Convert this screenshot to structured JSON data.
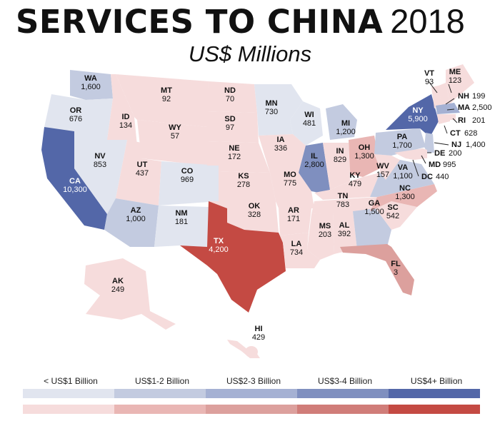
{
  "title": {
    "main": "SERVICES TO CHINA",
    "year": "2018",
    "subtitle": "US$ Millions"
  },
  "colors": {
    "blue": [
      "#e1e5ef",
      "#c3cbe0",
      "#a5b1d3",
      "#7f8fbf",
      "#5367a8"
    ],
    "red": [
      "#f6dcdc",
      "#e9b6b4",
      "#dca09d",
      "#d07d79",
      "#c44a43"
    ]
  },
  "legend": [
    {
      "label": "< US$1 Billion"
    },
    {
      "label": "US$1-2 Billion"
    },
    {
      "label": "US$2-3 Billion"
    },
    {
      "label": "US$3-4 Billion"
    },
    {
      "label": "US$4+ Billion"
    }
  ],
  "states": [
    {
      "code": "WA",
      "value": "1,600"
    },
    {
      "code": "OR",
      "value": "676"
    },
    {
      "code": "CA",
      "value": "10,300"
    },
    {
      "code": "NV",
      "value": "853"
    },
    {
      "code": "ID",
      "value": "134"
    },
    {
      "code": "MT",
      "value": "92"
    },
    {
      "code": "WY",
      "value": "57"
    },
    {
      "code": "UT",
      "value": "437"
    },
    {
      "code": "AZ",
      "value": "1,000"
    },
    {
      "code": "CO",
      "value": "969"
    },
    {
      "code": "NM",
      "value": "181"
    },
    {
      "code": "ND",
      "value": "70"
    },
    {
      "code": "SD",
      "value": "97"
    },
    {
      "code": "NE",
      "value": "172"
    },
    {
      "code": "KS",
      "value": "278"
    },
    {
      "code": "OK",
      "value": "328"
    },
    {
      "code": "TX",
      "value": "4,200"
    },
    {
      "code": "MN",
      "value": "730"
    },
    {
      "code": "IA",
      "value": "336"
    },
    {
      "code": "MO",
      "value": "775"
    },
    {
      "code": "AR",
      "value": "171"
    },
    {
      "code": "LA",
      "value": "734"
    },
    {
      "code": "WI",
      "value": "481"
    },
    {
      "code": "IL",
      "value": "2,800"
    },
    {
      "code": "MI",
      "value": "1,200"
    },
    {
      "code": "IN",
      "value": "829"
    },
    {
      "code": "OH",
      "value": "1,300"
    },
    {
      "code": "KY",
      "value": "479"
    },
    {
      "code": "TN",
      "value": "783"
    },
    {
      "code": "MS",
      "value": "203"
    },
    {
      "code": "AL",
      "value": "392"
    },
    {
      "code": "GA",
      "value": "1,500"
    },
    {
      "code": "FL",
      "value": "3"
    },
    {
      "code": "SC",
      "value": "542"
    },
    {
      "code": "NC",
      "value": "1,300"
    },
    {
      "code": "VA",
      "value": "1,100"
    },
    {
      "code": "WV",
      "value": "157"
    },
    {
      "code": "PA",
      "value": "1,700"
    },
    {
      "code": "NY",
      "value": "5,900"
    },
    {
      "code": "VT",
      "value": "93"
    },
    {
      "code": "ME",
      "value": "123"
    },
    {
      "code": "NH",
      "value": "199"
    },
    {
      "code": "MA",
      "value": "2,500"
    },
    {
      "code": "RI",
      "value": "201"
    },
    {
      "code": "CT",
      "value": "628"
    },
    {
      "code": "NJ",
      "value": "1,400"
    },
    {
      "code": "DE",
      "value": "200"
    },
    {
      "code": "MD",
      "value": "995"
    },
    {
      "code": "DC",
      "value": "440"
    },
    {
      "code": "AK",
      "value": "249"
    },
    {
      "code": "HI",
      "value": "429"
    }
  ]
}
